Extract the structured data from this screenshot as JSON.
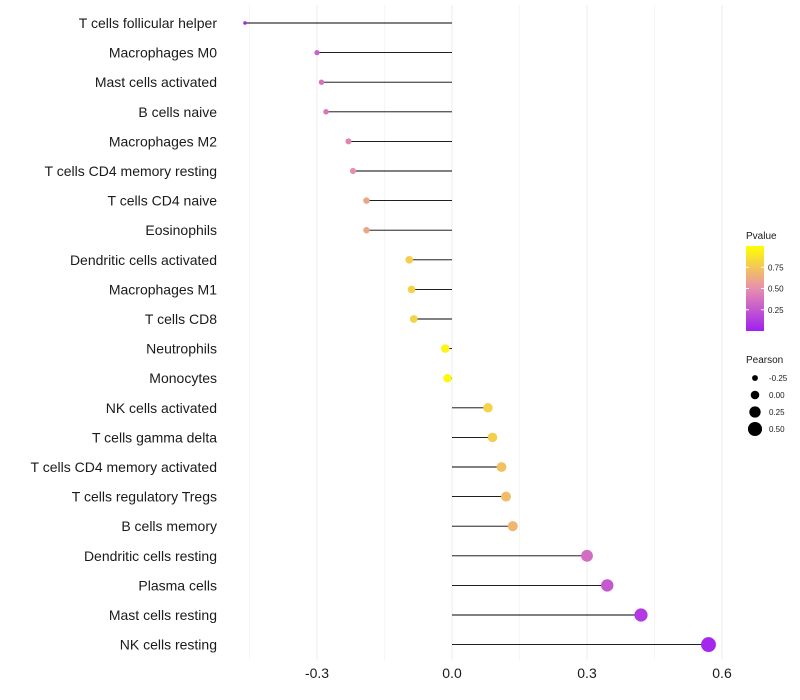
{
  "chart_data": {
    "type": "lollipop",
    "title": "",
    "xlabel": "",
    "ylabel": "",
    "xlim": [
      -0.46,
      0.62
    ],
    "x_ticks": [
      -0.3,
      0.0,
      0.3,
      0.6
    ],
    "x_tick_labels": [
      "-0.3",
      "0.0",
      "0.3",
      "0.6"
    ],
    "grid": true,
    "categories": [
      "T cells follicular helper",
      "Macrophages M0",
      "Mast cells activated",
      "B cells naive",
      "Macrophages M2",
      "T cells CD4 memory resting",
      "T cells CD4 naive",
      "Eosinophils",
      "Dendritic cells activated",
      "Macrophages M1",
      "T cells CD8",
      "Neutrophils",
      "Monocytes",
      "NK cells activated",
      "T cells gamma delta",
      "T cells CD4 memory activated",
      "T cells regulatory  Tregs ",
      "B cells memory",
      "Dendritic cells resting",
      "Plasma cells",
      "Mast cells resting",
      "NK cells resting"
    ],
    "pearson": [
      -0.46,
      -0.3,
      -0.29,
      -0.28,
      -0.23,
      -0.22,
      -0.19,
      -0.19,
      -0.095,
      -0.09,
      -0.085,
      -0.015,
      -0.01,
      0.08,
      0.09,
      0.11,
      0.12,
      0.135,
      0.3,
      0.345,
      0.42,
      0.57
    ],
    "pvalue": [
      0.02,
      0.3,
      0.37,
      0.4,
      0.45,
      0.5,
      0.6,
      0.6,
      0.78,
      0.79,
      0.8,
      0.95,
      0.97,
      0.8,
      0.78,
      0.72,
      0.7,
      0.67,
      0.35,
      0.25,
      0.12,
      0.03
    ],
    "legend_pvalue": {
      "title": "Pvalue",
      "ticks": [
        0.25,
        0.5,
        0.75
      ],
      "tick_labels": [
        "0.25",
        "0.50",
        "0.75"
      ],
      "range": [
        0.0,
        1.0
      ],
      "colors": [
        "#a020f0",
        "#ff8c00",
        "#ffff00"
      ]
    },
    "legend_pearson": {
      "title": "Pearson",
      "values": [
        -0.25,
        0.0,
        0.25,
        0.5
      ],
      "labels": [
        "-0.25",
        "0.00",
        "0.25",
        "0.50"
      ]
    },
    "legend_position": "right"
  }
}
